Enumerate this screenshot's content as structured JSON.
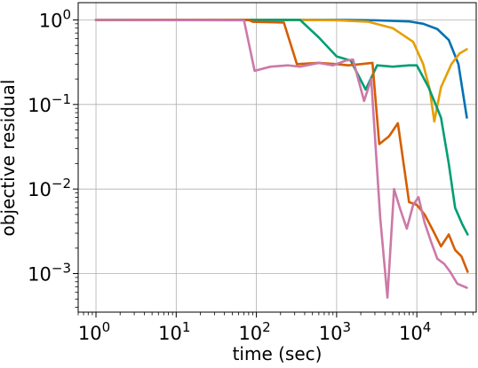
{
  "chart_data": {
    "type": "line",
    "title": "",
    "xlabel": "time (sec)",
    "ylabel": "objective residual",
    "x_scale": "log",
    "y_scale": "log",
    "xlim": [
      0.6,
      55000
    ],
    "ylim": [
      0.00035,
      1.6
    ],
    "grid": true,
    "legend": "none",
    "x_ticks": [
      {
        "base": "10",
        "exp": "0",
        "value": 1
      },
      {
        "base": "10",
        "exp": "1",
        "value": 10
      },
      {
        "base": "10",
        "exp": "2",
        "value": 100
      },
      {
        "base": "10",
        "exp": "3",
        "value": 1000
      },
      {
        "base": "10",
        "exp": "4",
        "value": 10000
      }
    ],
    "y_ticks": [
      {
        "base": "10",
        "exp": "0",
        "value": 1
      },
      {
        "base": "10",
        "exp": "−1",
        "value": 0.1
      },
      {
        "base": "10",
        "exp": "−2",
        "value": 0.01
      },
      {
        "base": "10",
        "exp": "−3",
        "value": 0.001
      }
    ],
    "series": [
      {
        "color": "#0072b2",
        "x": [
          1,
          100,
          1000,
          3000,
          8000,
          12000,
          18000,
          25000,
          33000,
          42000
        ],
        "y": [
          1.0,
          1.0,
          1.0,
          0.99,
          0.96,
          0.9,
          0.78,
          0.58,
          0.3,
          0.07
        ]
      },
      {
        "color": "#e69f00",
        "x": [
          1,
          300,
          1000,
          2500,
          5000,
          9000,
          12000,
          14500,
          16500,
          20000,
          27000,
          34000,
          42000
        ],
        "y": [
          1.0,
          1.0,
          0.99,
          0.95,
          0.8,
          0.55,
          0.3,
          0.15,
          0.063,
          0.16,
          0.3,
          0.4,
          0.45
        ]
      },
      {
        "color": "#009e73",
        "x": [
          1,
          100,
          350,
          600,
          1000,
          1500,
          2300,
          3200,
          5000,
          8000,
          10000,
          14000,
          20000,
          25000,
          30000,
          37000,
          43000
        ],
        "y": [
          1.0,
          1.0,
          1.0,
          0.62,
          0.37,
          0.33,
          0.15,
          0.29,
          0.28,
          0.29,
          0.29,
          0.16,
          0.07,
          0.02,
          0.006,
          0.0038,
          0.0029
        ]
      },
      {
        "color": "#d55e00",
        "x": [
          1,
          80,
          90,
          220,
          320,
          600,
          1000,
          1400,
          2000,
          2800,
          3400,
          4500,
          5800,
          8000,
          10000,
          12500,
          16000,
          20000,
          25000,
          30000,
          36000,
          43000
        ],
        "y": [
          1.0,
          1.0,
          0.95,
          0.93,
          0.3,
          0.31,
          0.3,
          0.29,
          0.3,
          0.31,
          0.034,
          0.042,
          0.06,
          0.007,
          0.0065,
          0.005,
          0.0032,
          0.0021,
          0.0029,
          0.0019,
          0.0016,
          0.00105
        ]
      },
      {
        "color": "#cc79a7",
        "x": [
          1,
          70,
          95,
          150,
          250,
          350,
          600,
          900,
          1300,
          1600,
          2200,
          2700,
          3500,
          4300,
          5200,
          6200,
          7500,
          9000,
          10500,
          12500,
          15000,
          18000,
          22000,
          26000,
          32000,
          42000
        ],
        "y": [
          1.0,
          0.99,
          0.25,
          0.28,
          0.29,
          0.28,
          0.31,
          0.29,
          0.33,
          0.34,
          0.11,
          0.2,
          0.0045,
          0.00052,
          0.01,
          0.0058,
          0.0034,
          0.0065,
          0.008,
          0.004,
          0.0024,
          0.0015,
          0.0013,
          0.00105,
          0.00076,
          0.00068
        ]
      }
    ]
  }
}
